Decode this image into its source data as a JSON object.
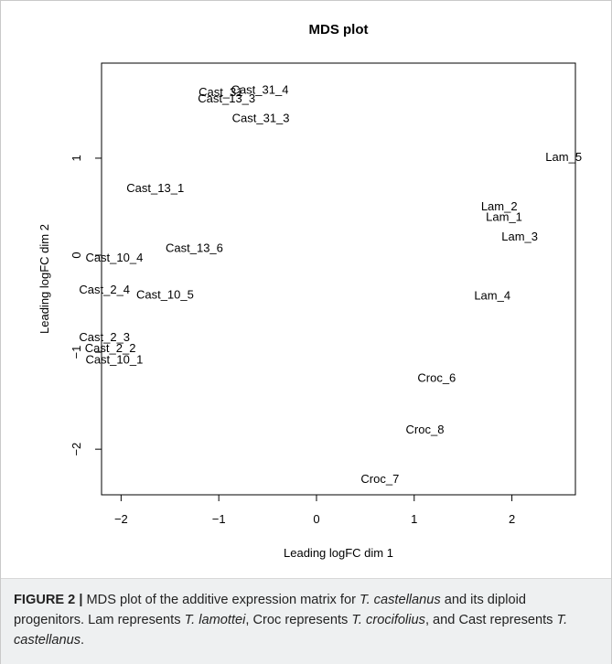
{
  "chart_data": {
    "type": "scatter",
    "title": "MDS plot",
    "xlabel": "Leading logFC dim 1",
    "ylabel": "Leading logFC dim 2",
    "xlim": [
      -2.2,
      2.65
    ],
    "ylim": [
      -2.47,
      1.98
    ],
    "xticks": [
      -2,
      -1,
      0,
      1,
      2
    ],
    "yticks": [
      -2,
      -1,
      0,
      1
    ],
    "points": [
      {
        "label": "Cast_31_4",
        "x": -0.58,
        "y": 1.71
      },
      {
        "label": "Cast_31",
        "x": -0.98,
        "y": 1.69
      },
      {
        "label": "Cast_13_3",
        "x": -0.92,
        "y": 1.62
      },
      {
        "label": "Cast_31_3",
        "x": -0.57,
        "y": 1.42
      },
      {
        "label": "Cast_13_1",
        "x": -1.65,
        "y": 0.7
      },
      {
        "label": "Cast_13_6",
        "x": -1.25,
        "y": 0.08
      },
      {
        "label": "Cast_10_4",
        "x": -2.07,
        "y": -0.02
      },
      {
        "label": "Cast_2_4",
        "x": -2.17,
        "y": -0.35
      },
      {
        "label": "Cast_10_5",
        "x": -1.55,
        "y": -0.4
      },
      {
        "label": "Cast_2_3",
        "x": -2.17,
        "y": -0.84
      },
      {
        "label": "Cast_2_2",
        "x": -2.11,
        "y": -0.95
      },
      {
        "label": "Cast_10_1",
        "x": -2.07,
        "y": -1.07
      },
      {
        "label": "Lam_5",
        "x": 2.53,
        "y": 1.02
      },
      {
        "label": "Lam_2",
        "x": 1.87,
        "y": 0.51
      },
      {
        "label": "Lam_1",
        "x": 1.92,
        "y": 0.4
      },
      {
        "label": "Lam_3",
        "x": 2.08,
        "y": 0.2
      },
      {
        "label": "Lam_4",
        "x": 1.8,
        "y": -0.41
      },
      {
        "label": "Croc_6",
        "x": 1.23,
        "y": -1.26
      },
      {
        "label": "Croc_8",
        "x": 1.11,
        "y": -1.79
      },
      {
        "label": "Croc_7",
        "x": 0.65,
        "y": -2.3
      }
    ]
  },
  "caption": {
    "figure_number": "FIGURE 2 |",
    "parts": [
      {
        "text": " MDS plot of the additive expression matrix for ",
        "italic": false
      },
      {
        "text": "T. castellanus",
        "italic": true
      },
      {
        "text": " and its diploid progenitors. Lam represents ",
        "italic": false
      },
      {
        "text": "T. lamottei",
        "italic": true
      },
      {
        "text": ", Croc represents ",
        "italic": false
      },
      {
        "text": "T. crocifolius",
        "italic": true
      },
      {
        "text": ", and Cast represents ",
        "italic": false
      },
      {
        "text": "T. castellanus",
        "italic": true
      },
      {
        "text": ".",
        "italic": false
      }
    ]
  }
}
